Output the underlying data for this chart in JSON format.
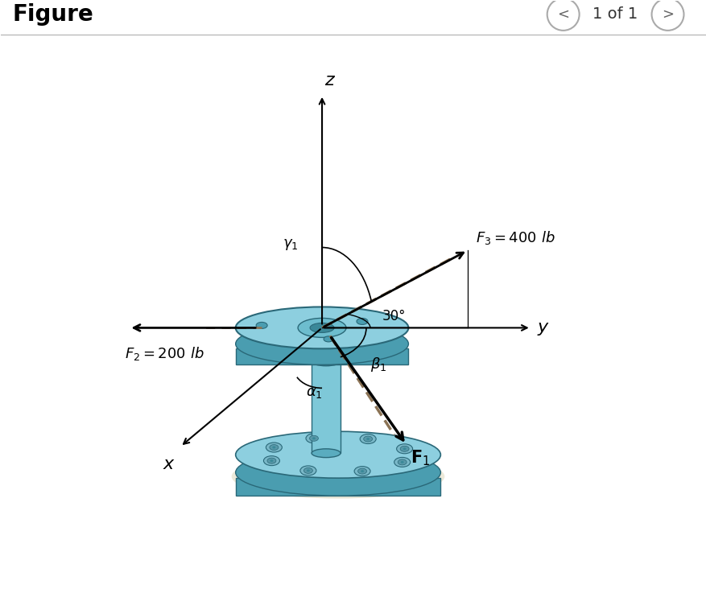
{
  "bg_color": "#ffffff",
  "disk_top_light": "#8dcfdf",
  "disk_top_mid": "#6dbdce",
  "disk_side": "#4a9db0",
  "disk_dark": "#3a8898",
  "disk_edge": "#2a6878",
  "shaft_light": "#7ec8d8",
  "shaft_mid": "#5aacbf",
  "bolt_face": "#7ab8c8",
  "bolt_inner": "#5898a8",
  "shadow_color": "#e8e4d0",
  "tan_line": "#8B7355",
  "F1_label": "$\\mathbf{F}_1$",
  "F2_label": "$F_2 = 200$ lb",
  "F3_label": "$F_3 = 400$ lb",
  "gamma_label": "$\\gamma_1$",
  "beta_label": "$\\beta_1$",
  "alpha_label": "$\\alpha_1$",
  "angle_30": "30°",
  "axis_x": "x",
  "axis_y": "y",
  "axis_z": "z",
  "header_title": "Figure",
  "header_nav": "1 of 1"
}
